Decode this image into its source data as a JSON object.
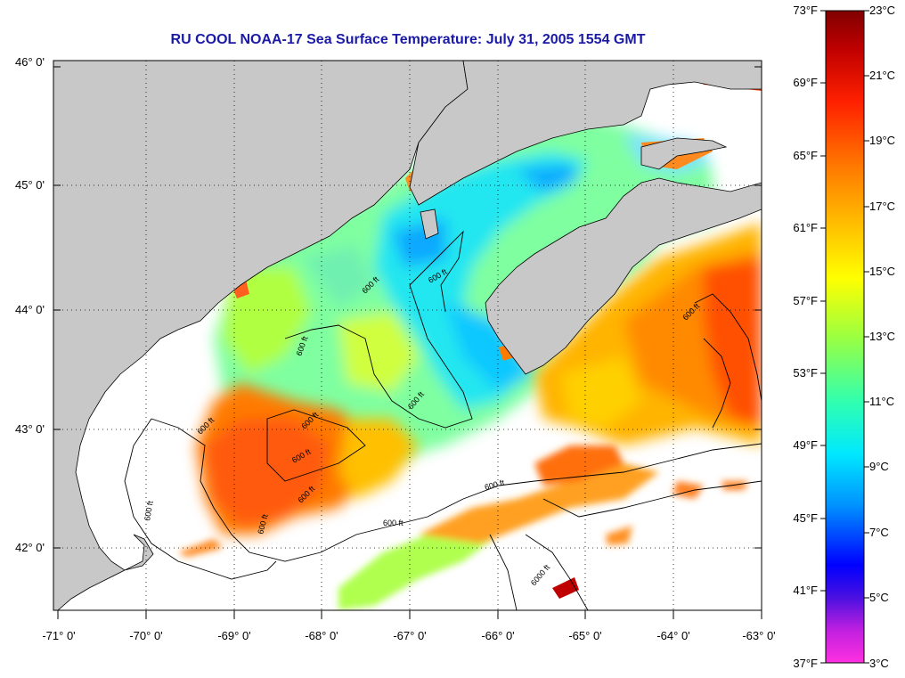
{
  "title": "RU COOL  NOAA-17  Sea Surface Temperature:  July 31, 2005 1554 GMT",
  "map": {
    "lat_labels": [
      "46° 0'",
      "45° 0'",
      "44° 0'",
      "43° 0'",
      "42° 0'"
    ],
    "lon_labels": [
      "-71° 0'",
      "-70° 0'",
      "-69° 0'",
      "-68° 0'",
      "-67° 0'",
      "-66° 0'",
      "-65° 0'",
      "-64° 0'",
      "-63° 0'"
    ],
    "contour_labels": [
      "600 ft",
      "600 ft",
      "600 ft",
      "600 ft",
      "600 ft",
      "600 ft",
      "600 ft",
      "600 ft",
      "600 ft",
      "600 ft",
      "600 ft",
      "600 ft",
      "600 ft",
      "6000 ft"
    ]
  },
  "colorbar": {
    "fahrenheit": [
      "73°F",
      "69°F",
      "65°F",
      "61°F",
      "57°F",
      "53°F",
      "49°F",
      "45°F",
      "41°F",
      "37°F"
    ],
    "celsius": [
      "23°C",
      "21°C",
      "19°C",
      "17°C",
      "15°C",
      "13°C",
      "11°C",
      "9°C",
      "7°C",
      "5°C",
      "3°C"
    ]
  },
  "colors": {
    "land": "#c8c8c8",
    "title": "#1a1aa6",
    "cold": "#0000ff",
    "warm": "#ff4500"
  }
}
